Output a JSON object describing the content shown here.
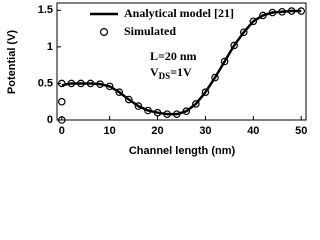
{
  "chart_data": {
    "type": "line",
    "xlabel": "Channel length (nm)",
    "ylabel": "Potential (V)",
    "annotations": [
      "L=20 nm",
      {
        "main": "V",
        "sub": "DS",
        "rest": "=1V"
      }
    ],
    "xlim": [
      -1,
      51
    ],
    "xticks": [
      0,
      10,
      20,
      30,
      40,
      50
    ],
    "ylim": [
      0,
      1.6
    ],
    "yticks": [
      0,
      0.5,
      1,
      1.5
    ],
    "series": [
      {
        "name": "Analytical model [21]",
        "type": "line",
        "color": "#000000",
        "x": [
          0,
          1,
          2,
          4,
          6,
          8,
          10,
          12,
          14,
          16,
          18,
          20,
          22,
          24,
          26,
          28,
          30,
          32,
          34,
          36,
          38,
          40,
          42,
          44,
          46,
          48,
          50
        ],
        "values": [
          0.47,
          0.49,
          0.5,
          0.5,
          0.5,
          0.49,
          0.46,
          0.38,
          0.28,
          0.19,
          0.13,
          0.1,
          0.08,
          0.08,
          0.12,
          0.22,
          0.38,
          0.58,
          0.8,
          1.02,
          1.2,
          1.35,
          1.43,
          1.47,
          1.48,
          1.49,
          1.49
        ]
      },
      {
        "name": "Simulated",
        "type": "scatter",
        "color": "#000000",
        "x": [
          0,
          0,
          0,
          2,
          4,
          6,
          8,
          10,
          12,
          14,
          16,
          18,
          20,
          22,
          24,
          26,
          28,
          30,
          32,
          34,
          36,
          38,
          40,
          42,
          44,
          46,
          48,
          50
        ],
        "values": [
          0,
          0.25,
          0.5,
          0.5,
          0.5,
          0.5,
          0.49,
          0.46,
          0.38,
          0.28,
          0.19,
          0.13,
          0.1,
          0.08,
          0.08,
          0.12,
          0.22,
          0.38,
          0.58,
          0.8,
          1.02,
          1.2,
          1.35,
          1.43,
          1.47,
          1.48,
          1.49,
          1.49
        ]
      }
    ]
  }
}
